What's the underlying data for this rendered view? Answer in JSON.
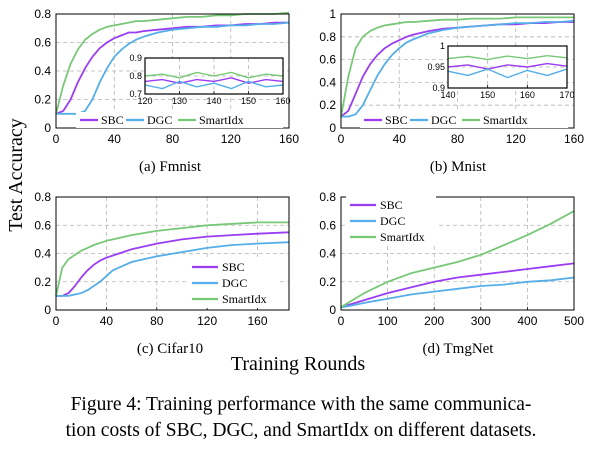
{
  "figure": {
    "y_axis_label": "Test Accuracy",
    "x_axis_label": "Training Rounds",
    "caption_line1": "Figure 4: Training performance with the same communica-",
    "caption_line2": "tion costs of SBC, DGC, and SmartIdx on different datasets.",
    "colors": {
      "SBC": "#9b3df2",
      "DGC": "#55aee8",
      "SmartIdx": "#78c878"
    }
  },
  "chart_data": [
    {
      "type": "line",
      "caption": "(a) Fmnist",
      "xlim": [
        0,
        160
      ],
      "ylim": [
        0,
        0.8
      ],
      "xticks": [
        "0",
        "40",
        "80",
        "120",
        "160"
      ],
      "yticks": [
        "0",
        "0.2",
        "0.4",
        "0.6",
        "0.8"
      ],
      "grid": true,
      "legend": "bottom (horizontal)",
      "series": [
        {
          "name": "SBC",
          "x": [
            0,
            5,
            10,
            15,
            20,
            25,
            30,
            35,
            40,
            45,
            50,
            55,
            60,
            70,
            80,
            90,
            100,
            110,
            120,
            130,
            140,
            150,
            160
          ],
          "y": [
            0.1,
            0.12,
            0.2,
            0.32,
            0.42,
            0.5,
            0.56,
            0.6,
            0.63,
            0.65,
            0.67,
            0.67,
            0.68,
            0.69,
            0.7,
            0.71,
            0.71,
            0.72,
            0.72,
            0.73,
            0.73,
            0.74,
            0.74
          ]
        },
        {
          "name": "DGC",
          "x": [
            0,
            5,
            10,
            15,
            20,
            25,
            30,
            35,
            40,
            45,
            50,
            55,
            60,
            70,
            80,
            90,
            100,
            110,
            120,
            130,
            140,
            150,
            160
          ],
          "y": [
            0.1,
            0.1,
            0.1,
            0.1,
            0.12,
            0.2,
            0.32,
            0.42,
            0.5,
            0.55,
            0.59,
            0.62,
            0.64,
            0.67,
            0.69,
            0.7,
            0.71,
            0.71,
            0.72,
            0.72,
            0.73,
            0.73,
            0.74
          ]
        },
        {
          "name": "SmartIdx",
          "x": [
            0,
            5,
            10,
            15,
            20,
            25,
            30,
            35,
            40,
            45,
            50,
            55,
            60,
            70,
            80,
            90,
            100,
            110,
            120,
            130,
            140,
            150,
            160
          ],
          "y": [
            0.1,
            0.3,
            0.45,
            0.55,
            0.62,
            0.66,
            0.69,
            0.71,
            0.72,
            0.73,
            0.74,
            0.75,
            0.75,
            0.76,
            0.77,
            0.78,
            0.78,
            0.79,
            0.79,
            0.8,
            0.8,
            0.8,
            0.81
          ]
        }
      ],
      "inset": {
        "xlim": [
          120,
          160
        ],
        "ylim": [
          0.7,
          0.9
        ],
        "xticks": [
          "120",
          "130",
          "140",
          "150",
          "160"
        ],
        "yticks": [
          "0.7",
          "0.8",
          "0.9"
        ],
        "series": [
          {
            "name": "SBC",
            "x": [
              120,
              125,
              130,
              135,
              140,
              145,
              150,
              155,
              160
            ],
            "y": [
              0.77,
              0.78,
              0.76,
              0.78,
              0.77,
              0.79,
              0.76,
              0.78,
              0.77
            ]
          },
          {
            "name": "DGC",
            "x": [
              120,
              125,
              130,
              135,
              140,
              145,
              150,
              155,
              160
            ],
            "y": [
              0.75,
              0.73,
              0.77,
              0.74,
              0.76,
              0.73,
              0.77,
              0.74,
              0.75
            ]
          },
          {
            "name": "SmartIdx",
            "x": [
              120,
              125,
              130,
              135,
              140,
              145,
              150,
              155,
              160
            ],
            "y": [
              0.8,
              0.81,
              0.79,
              0.82,
              0.8,
              0.82,
              0.79,
              0.81,
              0.8
            ]
          }
        ]
      }
    },
    {
      "type": "line",
      "caption": "(b) Mnist",
      "xlim": [
        0,
        160
      ],
      "ylim": [
        0,
        1
      ],
      "xticks": [
        "0",
        "40",
        "80",
        "120",
        "160"
      ],
      "yticks": [
        "0",
        "0.2",
        "0.4",
        "0.6",
        "0.8",
        "1"
      ],
      "grid": true,
      "legend": "bottom (horizontal)",
      "series": [
        {
          "name": "SBC",
          "x": [
            0,
            5,
            10,
            15,
            20,
            25,
            30,
            35,
            40,
            45,
            50,
            60,
            70,
            80,
            90,
            100,
            110,
            120,
            130,
            140,
            150,
            160
          ],
          "y": [
            0.1,
            0.15,
            0.3,
            0.45,
            0.56,
            0.64,
            0.7,
            0.74,
            0.77,
            0.8,
            0.82,
            0.85,
            0.87,
            0.88,
            0.89,
            0.9,
            0.91,
            0.91,
            0.92,
            0.92,
            0.93,
            0.93
          ]
        },
        {
          "name": "DGC",
          "x": [
            0,
            5,
            10,
            15,
            20,
            25,
            30,
            35,
            40,
            45,
            50,
            60,
            70,
            80,
            90,
            100,
            110,
            120,
            130,
            140,
            150,
            160
          ],
          "y": [
            0.1,
            0.1,
            0.12,
            0.2,
            0.33,
            0.46,
            0.56,
            0.64,
            0.7,
            0.75,
            0.78,
            0.83,
            0.86,
            0.88,
            0.89,
            0.9,
            0.91,
            0.92,
            0.92,
            0.93,
            0.93,
            0.94
          ]
        },
        {
          "name": "SmartIdx",
          "x": [
            0,
            5,
            10,
            15,
            20,
            25,
            30,
            35,
            40,
            45,
            50,
            60,
            70,
            80,
            90,
            100,
            110,
            120,
            130,
            140,
            150,
            160
          ],
          "y": [
            0.1,
            0.45,
            0.7,
            0.8,
            0.85,
            0.88,
            0.9,
            0.91,
            0.92,
            0.93,
            0.93,
            0.94,
            0.95,
            0.95,
            0.96,
            0.96,
            0.96,
            0.97,
            0.97,
            0.97,
            0.97,
            0.97
          ]
        }
      ],
      "inset": {
        "xlim": [
          140,
          170
        ],
        "ylim": [
          0.9,
          1
        ],
        "xticks": [
          "140",
          "150",
          "160",
          "170"
        ],
        "yticks": [
          "0.9",
          "0.95",
          "1"
        ],
        "series": [
          {
            "name": "SBC",
            "x": [
              140,
              145,
              150,
              155,
              160,
              165,
              170
            ],
            "y": [
              0.95,
              0.955,
              0.945,
              0.955,
              0.95,
              0.958,
              0.952
            ]
          },
          {
            "name": "DGC",
            "x": [
              140,
              145,
              150,
              155,
              160,
              165,
              170
            ],
            "y": [
              0.94,
              0.93,
              0.945,
              0.925,
              0.942,
              0.93,
              0.945
            ]
          },
          {
            "name": "SmartIdx",
            "x": [
              140,
              145,
              150,
              155,
              160,
              165,
              170
            ],
            "y": [
              0.97,
              0.975,
              0.968,
              0.976,
              0.97,
              0.977,
              0.972
            ]
          }
        ]
      }
    },
    {
      "type": "line",
      "caption": "(c) Cifar10",
      "xlim": [
        0,
        185
      ],
      "ylim": [
        0,
        0.8
      ],
      "xticks": [
        "0",
        "40",
        "80",
        "120",
        "160"
      ],
      "yticks": [
        "0",
        "0.2",
        "0.4",
        "0.6",
        "0.8"
      ],
      "grid": true,
      "legend": "bottom-right",
      "series": [
        {
          "name": "SBC",
          "x": [
            0,
            5,
            10,
            15,
            20,
            25,
            30,
            35,
            40,
            50,
            60,
            80,
            100,
            120,
            140,
            160,
            185
          ],
          "y": [
            0.1,
            0.1,
            0.12,
            0.17,
            0.23,
            0.28,
            0.32,
            0.35,
            0.37,
            0.4,
            0.43,
            0.47,
            0.5,
            0.52,
            0.53,
            0.54,
            0.55
          ]
        },
        {
          "name": "DGC",
          "x": [
            0,
            5,
            10,
            15,
            20,
            25,
            30,
            35,
            40,
            45,
            50,
            60,
            80,
            100,
            120,
            140,
            160,
            185
          ],
          "y": [
            0.1,
            0.1,
            0.1,
            0.11,
            0.12,
            0.14,
            0.17,
            0.2,
            0.24,
            0.28,
            0.3,
            0.34,
            0.38,
            0.41,
            0.44,
            0.46,
            0.47,
            0.48
          ]
        },
        {
          "name": "SmartIdx",
          "x": [
            0,
            5,
            10,
            15,
            20,
            25,
            30,
            40,
            50,
            60,
            80,
            100,
            120,
            140,
            160,
            185
          ],
          "y": [
            0.1,
            0.3,
            0.36,
            0.39,
            0.42,
            0.44,
            0.46,
            0.49,
            0.51,
            0.53,
            0.56,
            0.58,
            0.6,
            0.61,
            0.62,
            0.62
          ]
        }
      ]
    },
    {
      "type": "line",
      "caption": "(d) TmgNet",
      "xlim": [
        0,
        500
      ],
      "ylim": [
        0,
        0.8
      ],
      "xticks": [
        "0",
        "100",
        "200",
        "300",
        "400",
        "500"
      ],
      "yticks": [
        "0",
        "0.2",
        "0.4",
        "0.6",
        "0.8"
      ],
      "grid": true,
      "legend": "top-left",
      "series": [
        {
          "name": "SBC",
          "x": [
            0,
            20,
            50,
            100,
            150,
            200,
            250,
            300,
            350,
            400,
            450,
            500
          ],
          "y": [
            0.02,
            0.04,
            0.07,
            0.12,
            0.16,
            0.2,
            0.23,
            0.25,
            0.27,
            0.29,
            0.31,
            0.33
          ]
        },
        {
          "name": "DGC",
          "x": [
            0,
            20,
            50,
            100,
            150,
            200,
            250,
            300,
            350,
            400,
            450,
            500
          ],
          "y": [
            0.02,
            0.03,
            0.05,
            0.08,
            0.11,
            0.13,
            0.15,
            0.17,
            0.18,
            0.2,
            0.21,
            0.23
          ]
        },
        {
          "name": "SmartIdx",
          "x": [
            0,
            20,
            50,
            100,
            150,
            200,
            250,
            300,
            350,
            400,
            450,
            500
          ],
          "y": [
            0.02,
            0.06,
            0.12,
            0.2,
            0.26,
            0.3,
            0.34,
            0.39,
            0.46,
            0.53,
            0.61,
            0.7
          ]
        }
      ]
    }
  ]
}
